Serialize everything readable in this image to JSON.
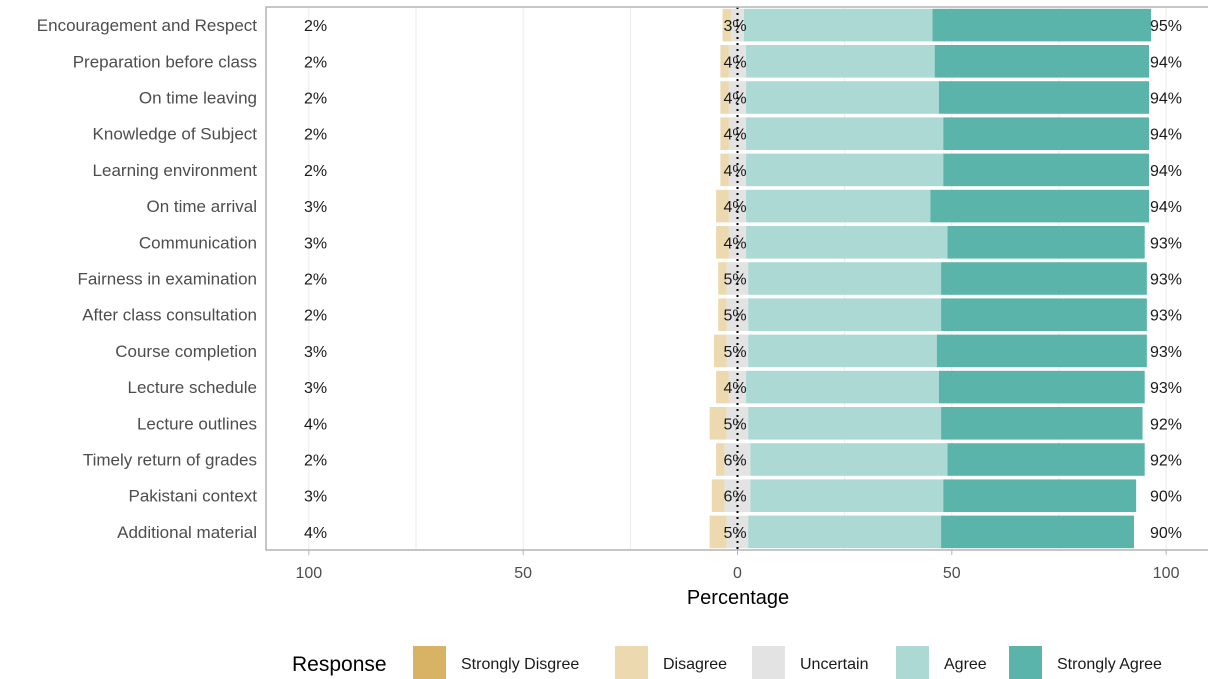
{
  "chart_data": {
    "type": "bar",
    "orientation": "horizontal",
    "stacking": "diverging",
    "xlabel": "Percentage",
    "ylabel": "",
    "xlim": [
      -110,
      110
    ],
    "xticks": [
      -100,
      -50,
      0,
      50,
      100
    ],
    "xtick_labels": [
      "100",
      "50",
      "0",
      "50",
      "100"
    ],
    "grid": true,
    "categories": [
      "Encouragement and Respect",
      "Preparation before class",
      "On time leaving",
      "Knowledge of Subject",
      "Learning environment",
      "On time arrival",
      "Communication",
      "Fairness in examination",
      "After class consultation",
      "Course completion",
      "Lecture schedule",
      "Lecture outlines",
      "Timely return of grades",
      "Pakistani context",
      "Additional material"
    ],
    "series": [
      {
        "name": "Strongly Disgree",
        "color": "#d9b365",
        "values": [
          0,
          0,
          0,
          0,
          0,
          0,
          0,
          0,
          0,
          0,
          0,
          0,
          0,
          0,
          0
        ]
      },
      {
        "name": "Disagree",
        "color": "#ecd9b0",
        "values": [
          2,
          2,
          2,
          2,
          2,
          3,
          3,
          2,
          2,
          3,
          3,
          4,
          2,
          3,
          4
        ]
      },
      {
        "name": "Uncertain",
        "color": "#e3e3e3",
        "values": [
          3,
          4,
          4,
          4,
          4,
          4,
          4,
          5,
          5,
          5,
          4,
          5,
          6,
          6,
          5
        ]
      },
      {
        "name": "Agree",
        "color": "#acd9d4",
        "values": [
          44,
          44,
          45,
          46,
          46,
          43,
          47,
          45,
          45,
          44,
          45,
          45,
          46,
          45,
          45
        ]
      },
      {
        "name": "Strongly Agree",
        "color": "#5ab4a9",
        "values": [
          51,
          50,
          49,
          48,
          48,
          51,
          46,
          48,
          48,
          49,
          48,
          47,
          46,
          45,
          45
        ]
      }
    ],
    "low_labels": [
      "2%",
      "2%",
      "2%",
      "2%",
      "2%",
      "3%",
      "3%",
      "2%",
      "2%",
      "3%",
      "3%",
      "4%",
      "2%",
      "3%",
      "4%"
    ],
    "neutral_labels": [
      "3%",
      "4%",
      "4%",
      "4%",
      "4%",
      "4%",
      "4%",
      "5%",
      "5%",
      "5%",
      "4%",
      "5%",
      "6%",
      "6%",
      "5%"
    ],
    "high_labels": [
      "95%",
      "94%",
      "94%",
      "94%",
      "94%",
      "94%",
      "93%",
      "93%",
      "93%",
      "93%",
      "93%",
      "92%",
      "92%",
      "90%",
      "90%"
    ],
    "legend": {
      "title": "Response",
      "position": "bottom"
    }
  }
}
